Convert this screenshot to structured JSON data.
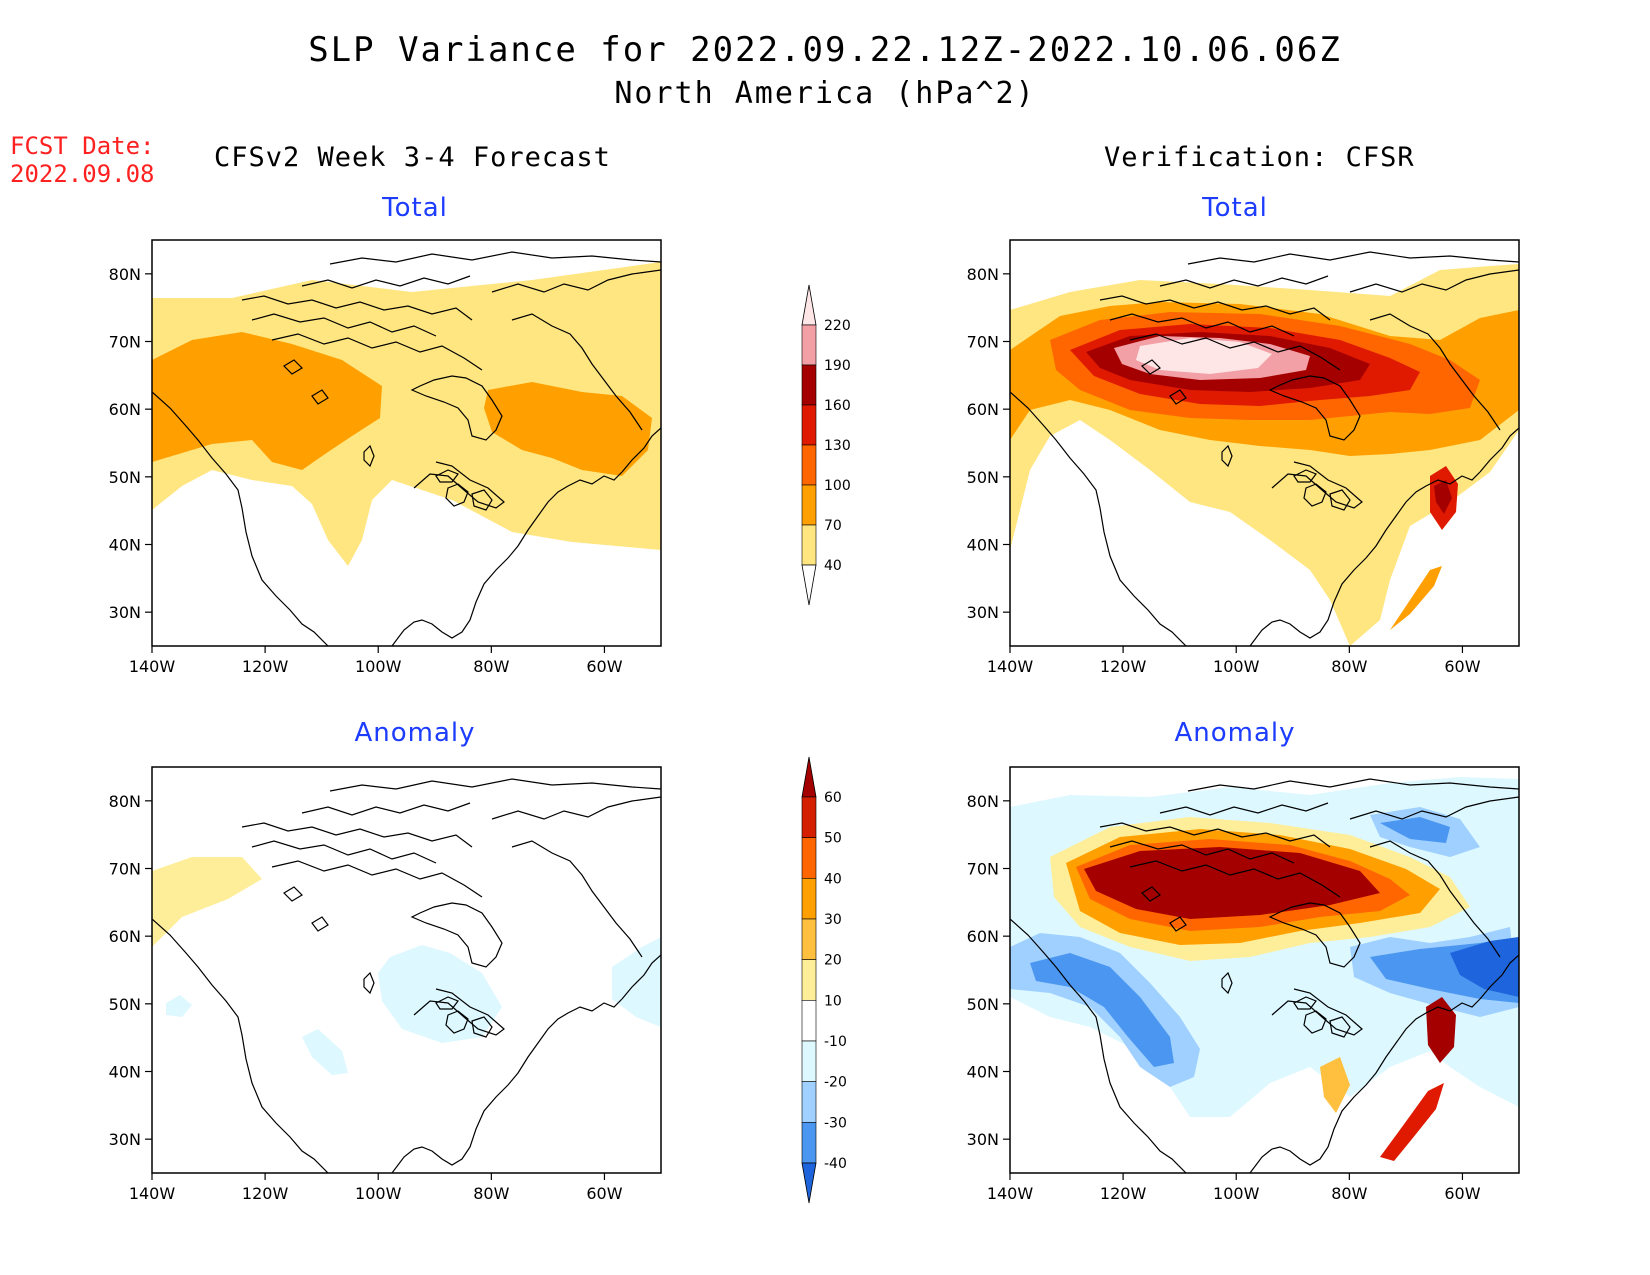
{
  "title": {
    "line1": "SLP Variance for 2022.09.22.12Z-2022.10.06.06Z",
    "line2": "North America (hPa^2)"
  },
  "fcst": {
    "label": "FCST Date:",
    "date": "2022.09.08"
  },
  "columns": {
    "left": "CFSv2 Week 3-4 Forecast",
    "right": "Verification: CFSR"
  },
  "panels": [
    {
      "title": "Total",
      "field": "total"
    },
    {
      "title": "Total",
      "field": "total"
    },
    {
      "title": "Anomaly",
      "field": "anomaly"
    },
    {
      "title": "Anomaly",
      "field": "anomaly"
    }
  ],
  "axes": {
    "lat_labels": [
      "80N",
      "70N",
      "60N",
      "50N",
      "40N",
      "30N"
    ],
    "lon_labels": [
      "140W",
      "120W",
      "100W",
      "80W",
      "60W"
    ],
    "lat_range": [
      25,
      85
    ],
    "lon_range": [
      -140,
      -50
    ]
  },
  "colorbars": {
    "total": {
      "labels": [
        "220",
        "190",
        "160",
        "130",
        "100",
        "70",
        "40"
      ],
      "colors": [
        "#ffe6e6",
        "#f2a0a5",
        "#a50000",
        "#e01a00",
        "#ff6600",
        "#ffa000",
        "#ffe680"
      ]
    },
    "anomaly": {
      "labels": [
        "60",
        "50",
        "40",
        "30",
        "20",
        "10",
        "-10",
        "-20",
        "-30",
        "-40"
      ],
      "colors": [
        "#a50000",
        "#d42000",
        "#ff6600",
        "#ffa000",
        "#ffc040",
        "#ffee99",
        "#ffffff",
        "#ddf8ff",
        "#9fd0ff",
        "#4a96f0",
        "#1e64dc"
      ]
    }
  }
}
